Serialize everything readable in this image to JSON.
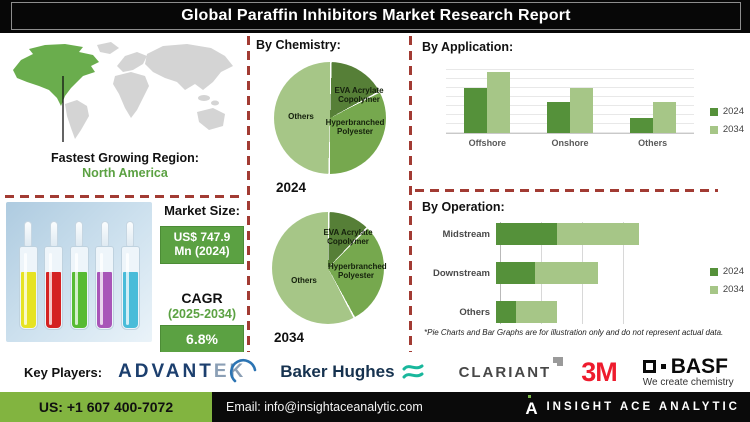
{
  "title": "Global Paraffin Inhibitors Market Research Report",
  "map": {
    "caption_label": "Fastest Growing Region:",
    "caption_value": "North America"
  },
  "product_image": {
    "vial_colors": [
      "#e6e323",
      "#d42222",
      "#58bb33",
      "#a855b8",
      "#49bcd9"
    ]
  },
  "market": {
    "size_label": "Market Size:",
    "size_value_line1": "US$ 747.9",
    "size_value_line2": "Mn (2024)",
    "cagr_label": "CAGR",
    "cagr_period": "(2025-2034)",
    "cagr_value": "6.8%"
  },
  "sections": {
    "chemistry_heading": "By Chemistry:",
    "application_heading": "By Application:",
    "operation_heading": "By Operation:"
  },
  "note": "*Pie Charts and Bar Graphs are for illustration only and do not represent actual data.",
  "key_players": {
    "label": "Key Players:",
    "advantek_main": "ADVANT",
    "advantek_tail": "EK",
    "baker_hughes": "Baker Hughes",
    "clariant": "CLARIANT",
    "mmm": "3M",
    "basf": "BASF",
    "basf_tagline": "We create chemistry"
  },
  "footer": {
    "phone": "US: +1 607 400-7072",
    "email": "Email: info@insightaceanalytic.com",
    "brand": "INSIGHT ACE ANALYTIC"
  },
  "colors": {
    "accent_green": "#5ba142",
    "dark_series_green": "#55913a",
    "mid_green": "#76a84e",
    "light_series_green": "#a6c687",
    "eva_dark_green": "#567f37",
    "footer_green": "#82b440",
    "dashed_line_red": "#a23b33",
    "na_highlight_green": "#6aad4d",
    "map_land_gray": "#d4d4d4",
    "threem_red": "#ee1b2d",
    "advantek_navy": "#1c3f6e",
    "baker_hughes_teal": "#19b79c"
  },
  "chart_data": [
    {
      "id": "chemistry_2024",
      "type": "pie",
      "title": "By Chemistry — 2024",
      "year_label": "2024",
      "legend_position": "none",
      "slices": [
        {
          "label": "EVA Acrylate Copolymer",
          "value": 17,
          "color": "#567f37"
        },
        {
          "label": "Hyperbranched Polyester",
          "value": 33,
          "color": "#76a84e"
        },
        {
          "label": "Others",
          "value": 50,
          "color": "#a6c687"
        }
      ]
    },
    {
      "id": "chemistry_2034",
      "type": "pie",
      "title": "By Chemistry — 2034",
      "year_label": "2034",
      "legend_position": "none",
      "slices": [
        {
          "label": "EVA Acrylate Copolymer",
          "value": 12,
          "color": "#567f37"
        },
        {
          "label": "Hyperbranched Polyester",
          "value": 30,
          "color": "#76a84e"
        },
        {
          "label": "Others",
          "value": 58,
          "color": "#a6c687"
        }
      ]
    },
    {
      "id": "by_application",
      "type": "bar",
      "title": "By Application",
      "categories": [
        "Offshore",
        "Onshore",
        "Others"
      ],
      "series": [
        {
          "name": "2024",
          "color": "#55913a",
          "values": [
            64,
            43,
            21
          ]
        },
        {
          "name": "2034",
          "color": "#a6c687",
          "values": [
            86,
            64,
            43
          ]
        }
      ],
      "ylim": [
        0,
        100
      ],
      "grid": true,
      "legend_position": "right",
      "units": "illustrative (chart marked as not representing actual data)"
    },
    {
      "id": "by_operation",
      "type": "bar-horizontal-stacked",
      "title": "By Operation",
      "categories": [
        "Midstream",
        "Downstream",
        "Others"
      ],
      "series": [
        {
          "name": "2024",
          "color": "#55913a",
          "values": [
            37,
            24,
            12
          ]
        },
        {
          "name": "2034",
          "color": "#a6c687",
          "values": [
            50,
            38,
            25
          ]
        }
      ],
      "xlim": [
        0,
        100
      ],
      "grid": true,
      "legend_position": "right",
      "units": "illustrative (chart marked as not representing actual data)"
    }
  ]
}
